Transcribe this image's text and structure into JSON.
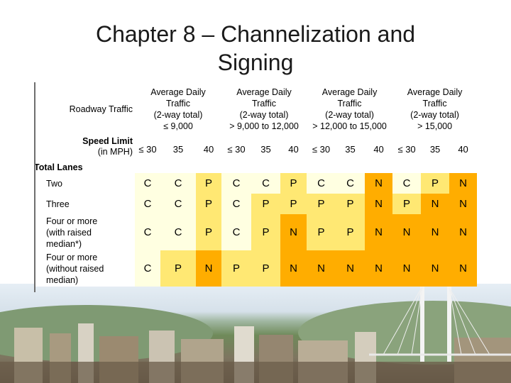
{
  "title": {
    "line1": "Chapter 8 – Channelization and",
    "line2": "Signing"
  },
  "table": {
    "roadway_traffic_label": "Roadway Traffic",
    "speed_limit_label": "Speed Limit",
    "speed_unit_label": "(in MPH)",
    "total_lanes_label": "Total Lanes",
    "groups": [
      {
        "l1": "Average Daily",
        "l2": "Traffic",
        "l3": "(2-way total)",
        "l4": "≤ 9,000"
      },
      {
        "l1": "Average Daily",
        "l2": "Traffic",
        "l3": "(2-way total)",
        "l4": "> 9,000 to 12,000"
      },
      {
        "l1": "Average Daily",
        "l2": "Traffic",
        "l3": "(2-way total)",
        "l4": "> 12,000 to 15,000"
      },
      {
        "l1": "Average Daily",
        "l2": "Traffic",
        "l3": "(2-way total)",
        "l4": "> 15,000"
      }
    ],
    "speeds": [
      "≤ 30",
      "35",
      "40",
      "≤ 30",
      "35",
      "40",
      "≤ 30",
      "35",
      "40",
      "≤ 30",
      "35",
      "40"
    ],
    "rows": [
      {
        "label": [
          "Two"
        ],
        "values": [
          "C",
          "C",
          "P",
          "C",
          "C",
          "P",
          "C",
          "C",
          "N",
          "C",
          "P",
          "N"
        ]
      },
      {
        "label": [
          "Three"
        ],
        "values": [
          "C",
          "C",
          "P",
          "C",
          "P",
          "P",
          "P",
          "P",
          "N",
          "P",
          "N",
          "N"
        ]
      },
      {
        "label": [
          "Four or more",
          "(with raised",
          "median*)"
        ],
        "values": [
          "C",
          "C",
          "P",
          "C",
          "P",
          "N",
          "P",
          "P",
          "N",
          "N",
          "N",
          "N"
        ]
      },
      {
        "label": [
          "Four or more",
          "(without raised",
          "median)"
        ],
        "values": [
          "C",
          "P",
          "N",
          "P",
          "P",
          "N",
          "N",
          "N",
          "N",
          "N",
          "N",
          "N"
        ]
      }
    ]
  },
  "colors": {
    "C": "#ffffe1",
    "P": "#ffe873",
    "N": "#ffad00"
  }
}
